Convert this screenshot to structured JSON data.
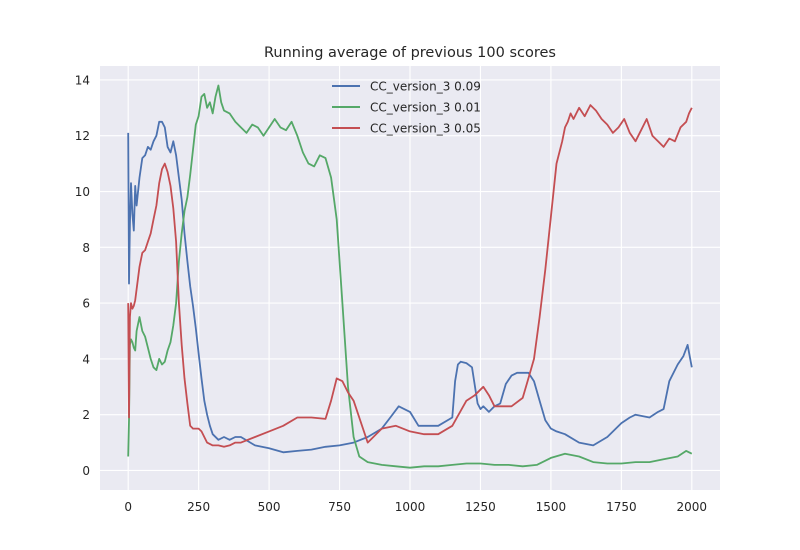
{
  "chart_data": {
    "type": "line",
    "title": "Running average of previous 100 scores",
    "xlabel": "",
    "ylabel": "",
    "xlim": [
      -100,
      2100
    ],
    "ylim": [
      -0.7,
      14.5
    ],
    "xticks": [
      0,
      250,
      500,
      750,
      1000,
      1250,
      1500,
      1750,
      2000
    ],
    "yticks": [
      0,
      2,
      4,
      6,
      8,
      10,
      12,
      14
    ],
    "grid": true,
    "legend_position": "top-center",
    "background": "#eaeaf2",
    "series": [
      {
        "name": "CC_version_3 0.09",
        "color": "#4c72b0",
        "x": [
          0,
          3,
          6,
          10,
          15,
          20,
          25,
          30,
          40,
          50,
          60,
          70,
          80,
          90,
          100,
          110,
          120,
          130,
          140,
          150,
          160,
          170,
          180,
          190,
          200,
          210,
          220,
          230,
          240,
          250,
          260,
          270,
          280,
          290,
          300,
          320,
          340,
          360,
          380,
          400,
          450,
          500,
          550,
          600,
          650,
          700,
          750,
          800,
          850,
          900,
          930,
          960,
          1000,
          1030,
          1060,
          1100,
          1150,
          1160,
          1170,
          1180,
          1200,
          1220,
          1240,
          1250,
          1260,
          1280,
          1300,
          1320,
          1340,
          1360,
          1380,
          1400,
          1420,
          1440,
          1460,
          1480,
          1500,
          1520,
          1550,
          1600,
          1650,
          1700,
          1750,
          1780,
          1800,
          1850,
          1880,
          1900,
          1920,
          1950,
          1970,
          1985,
          2000
        ],
        "y": [
          12.1,
          6.7,
          8.8,
          10.3,
          9.2,
          8.6,
          10.2,
          9.5,
          10.5,
          11.2,
          11.3,
          11.6,
          11.5,
          11.8,
          12.0,
          12.5,
          12.5,
          12.3,
          11.6,
          11.4,
          11.8,
          11.3,
          10.5,
          9.7,
          8.5,
          7.5,
          6.6,
          5.9,
          5.1,
          4.2,
          3.3,
          2.5,
          2.0,
          1.6,
          1.3,
          1.1,
          1.2,
          1.1,
          1.2,
          1.2,
          0.9,
          0.8,
          0.65,
          0.7,
          0.75,
          0.85,
          0.9,
          1.0,
          1.2,
          1.5,
          1.9,
          2.3,
          2.1,
          1.6,
          1.6,
          1.6,
          1.9,
          3.2,
          3.8,
          3.9,
          3.85,
          3.7,
          2.4,
          2.2,
          2.3,
          2.1,
          2.3,
          2.4,
          3.1,
          3.4,
          3.5,
          3.5,
          3.5,
          3.2,
          2.5,
          1.8,
          1.5,
          1.4,
          1.3,
          1.0,
          0.9,
          1.2,
          1.7,
          1.9,
          2.0,
          1.9,
          2.1,
          2.2,
          3.2,
          3.8,
          4.1,
          4.5,
          3.7
        ]
      },
      {
        "name": "CC_version_3 0.01",
        "color": "#55a868",
        "x": [
          0,
          3,
          6,
          10,
          15,
          20,
          25,
          30,
          40,
          50,
          60,
          70,
          80,
          90,
          100,
          110,
          120,
          130,
          140,
          150,
          160,
          170,
          180,
          190,
          200,
          210,
          220,
          230,
          240,
          250,
          260,
          270,
          280,
          290,
          300,
          310,
          320,
          330,
          340,
          360,
          380,
          400,
          420,
          440,
          460,
          480,
          500,
          520,
          540,
          560,
          580,
          600,
          620,
          640,
          660,
          680,
          700,
          720,
          740,
          760,
          780,
          800,
          820,
          850,
          900,
          950,
          1000,
          1050,
          1100,
          1150,
          1200,
          1250,
          1300,
          1350,
          1400,
          1450,
          1500,
          1550,
          1600,
          1650,
          1700,
          1750,
          1800,
          1850,
          1900,
          1950,
          1980,
          2000
        ],
        "y": [
          0.5,
          1.8,
          4.5,
          4.7,
          4.6,
          4.4,
          4.3,
          5.0,
          5.5,
          5.0,
          4.8,
          4.4,
          4.0,
          3.7,
          3.6,
          4.0,
          3.8,
          3.9,
          4.3,
          4.6,
          5.2,
          6.0,
          7.5,
          8.5,
          9.3,
          9.8,
          10.6,
          11.5,
          12.4,
          12.7,
          13.4,
          13.5,
          13.0,
          13.2,
          12.8,
          13.4,
          13.8,
          13.2,
          12.9,
          12.8,
          12.5,
          12.3,
          12.1,
          12.4,
          12.3,
          12.0,
          12.3,
          12.6,
          12.3,
          12.2,
          12.5,
          12.0,
          11.4,
          11.0,
          10.9,
          11.3,
          11.2,
          10.5,
          9.0,
          6.0,
          3.0,
          1.2,
          0.5,
          0.3,
          0.2,
          0.15,
          0.1,
          0.15,
          0.15,
          0.2,
          0.25,
          0.25,
          0.2,
          0.2,
          0.15,
          0.2,
          0.45,
          0.6,
          0.5,
          0.3,
          0.25,
          0.25,
          0.3,
          0.3,
          0.4,
          0.5,
          0.7,
          0.6
        ]
      },
      {
        "name": "CC_version_3 0.05",
        "color": "#c44e52",
        "x": [
          0,
          3,
          6,
          10,
          15,
          20,
          25,
          30,
          40,
          50,
          60,
          70,
          80,
          90,
          100,
          110,
          120,
          130,
          140,
          150,
          160,
          170,
          180,
          190,
          200,
          210,
          220,
          230,
          240,
          250,
          260,
          270,
          280,
          300,
          320,
          340,
          360,
          380,
          400,
          450,
          500,
          550,
          600,
          650,
          700,
          720,
          740,
          760,
          780,
          800,
          850,
          900,
          950,
          1000,
          1050,
          1100,
          1150,
          1200,
          1230,
          1260,
          1280,
          1300,
          1320,
          1360,
          1400,
          1420,
          1440,
          1460,
          1480,
          1500,
          1520,
          1540,
          1550,
          1560,
          1570,
          1580,
          1600,
          1620,
          1640,
          1660,
          1680,
          1700,
          1720,
          1740,
          1760,
          1780,
          1800,
          1820,
          1840,
          1860,
          1880,
          1900,
          1920,
          1940,
          1960,
          1980,
          1990,
          2000
        ],
        "y": [
          6.0,
          1.9,
          5.5,
          6.0,
          5.8,
          5.9,
          6.1,
          6.5,
          7.3,
          7.8,
          7.9,
          8.2,
          8.5,
          9.0,
          9.5,
          10.3,
          10.8,
          11.0,
          10.7,
          10.2,
          9.4,
          8.2,
          6.0,
          4.5,
          3.3,
          2.4,
          1.6,
          1.5,
          1.5,
          1.5,
          1.4,
          1.2,
          1.0,
          0.9,
          0.9,
          0.85,
          0.9,
          1.0,
          1.0,
          1.2,
          1.4,
          1.6,
          1.9,
          1.9,
          1.85,
          2.5,
          3.3,
          3.2,
          2.8,
          2.5,
          1.0,
          1.5,
          1.6,
          1.4,
          1.3,
          1.3,
          1.6,
          2.5,
          2.7,
          3.0,
          2.7,
          2.3,
          2.3,
          2.3,
          2.6,
          3.3,
          4.0,
          5.5,
          7.2,
          9.1,
          11.0,
          11.8,
          12.3,
          12.5,
          12.8,
          12.6,
          13.0,
          12.7,
          13.1,
          12.9,
          12.6,
          12.4,
          12.1,
          12.3,
          12.6,
          12.1,
          11.8,
          12.2,
          12.6,
          12.0,
          11.8,
          11.6,
          11.9,
          11.8,
          12.3,
          12.5,
          12.8,
          13.0
        ]
      }
    ]
  }
}
